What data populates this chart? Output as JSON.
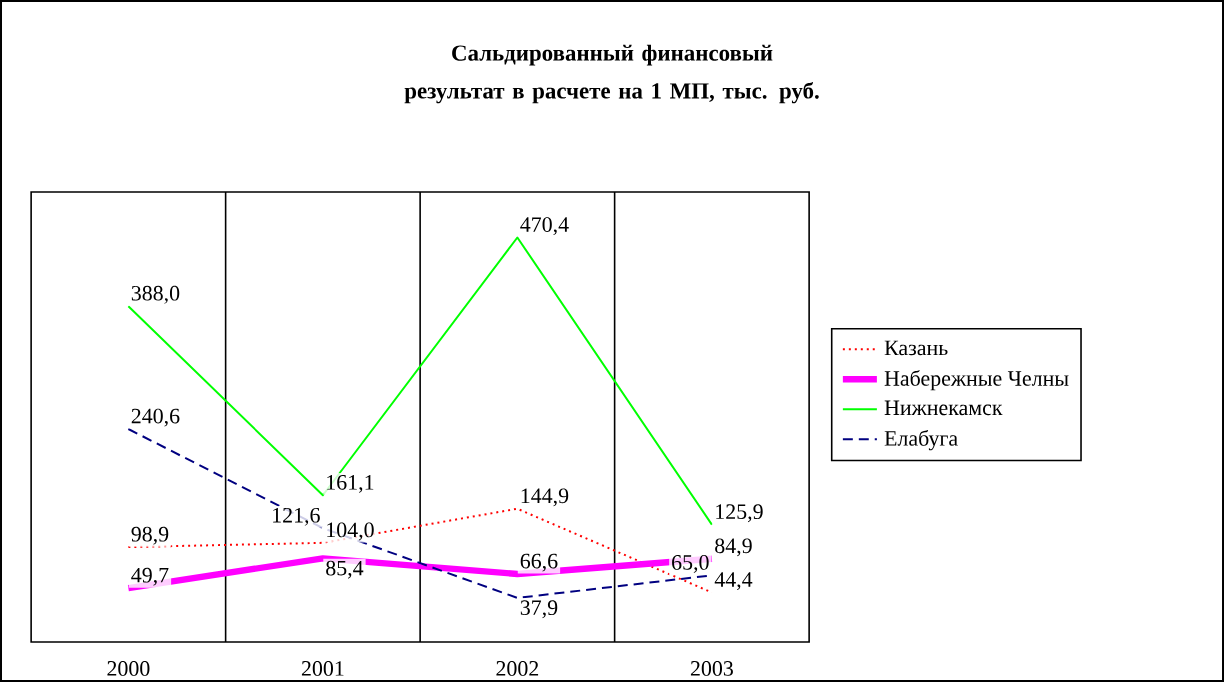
{
  "chart_data": {
    "type": "line",
    "title": "Сальдированный финансовый результат в расчете на 1 МП, тыс. руб.",
    "categories": [
      "2000",
      "2001",
      "2002",
      "2003"
    ],
    "ylim": [
      -15,
      525
    ],
    "grid": "x",
    "legend": "right",
    "marker": "none",
    "data_labels": true,
    "tick_labels": "x",
    "series": [
      {
        "name": "Казань",
        "color": "#ff0000",
        "line_style": "dotted",
        "values": [
          98.9,
          104.0,
          144.9,
          44.4
        ],
        "value_labels": [
          "98,9",
          "104,0",
          "144,9",
          "44,4"
        ]
      },
      {
        "name": "Набережные Челны",
        "color": "#ff00ff",
        "line_style": "solid",
        "values": [
          49.7,
          85.4,
          66.6,
          84.9
        ],
        "value_labels": [
          "49,7",
          "85,4",
          "66,6",
          "84,9"
        ]
      },
      {
        "name": "Нижнекамск",
        "color": "#00ff00",
        "line_style": "solid",
        "values": [
          388.0,
          161.1,
          470.4,
          125.9
        ],
        "value_labels": [
          "388,0",
          "161,1",
          "470,4",
          "125,9"
        ]
      },
      {
        "name": "Елабуга",
        "color": "#000080",
        "line_style": "dashed",
        "values": [
          240.6,
          121.6,
          37.9,
          65.0
        ],
        "value_labels": [
          "240,6",
          "121,6",
          "37,9",
          "65,0"
        ]
      }
    ]
  }
}
